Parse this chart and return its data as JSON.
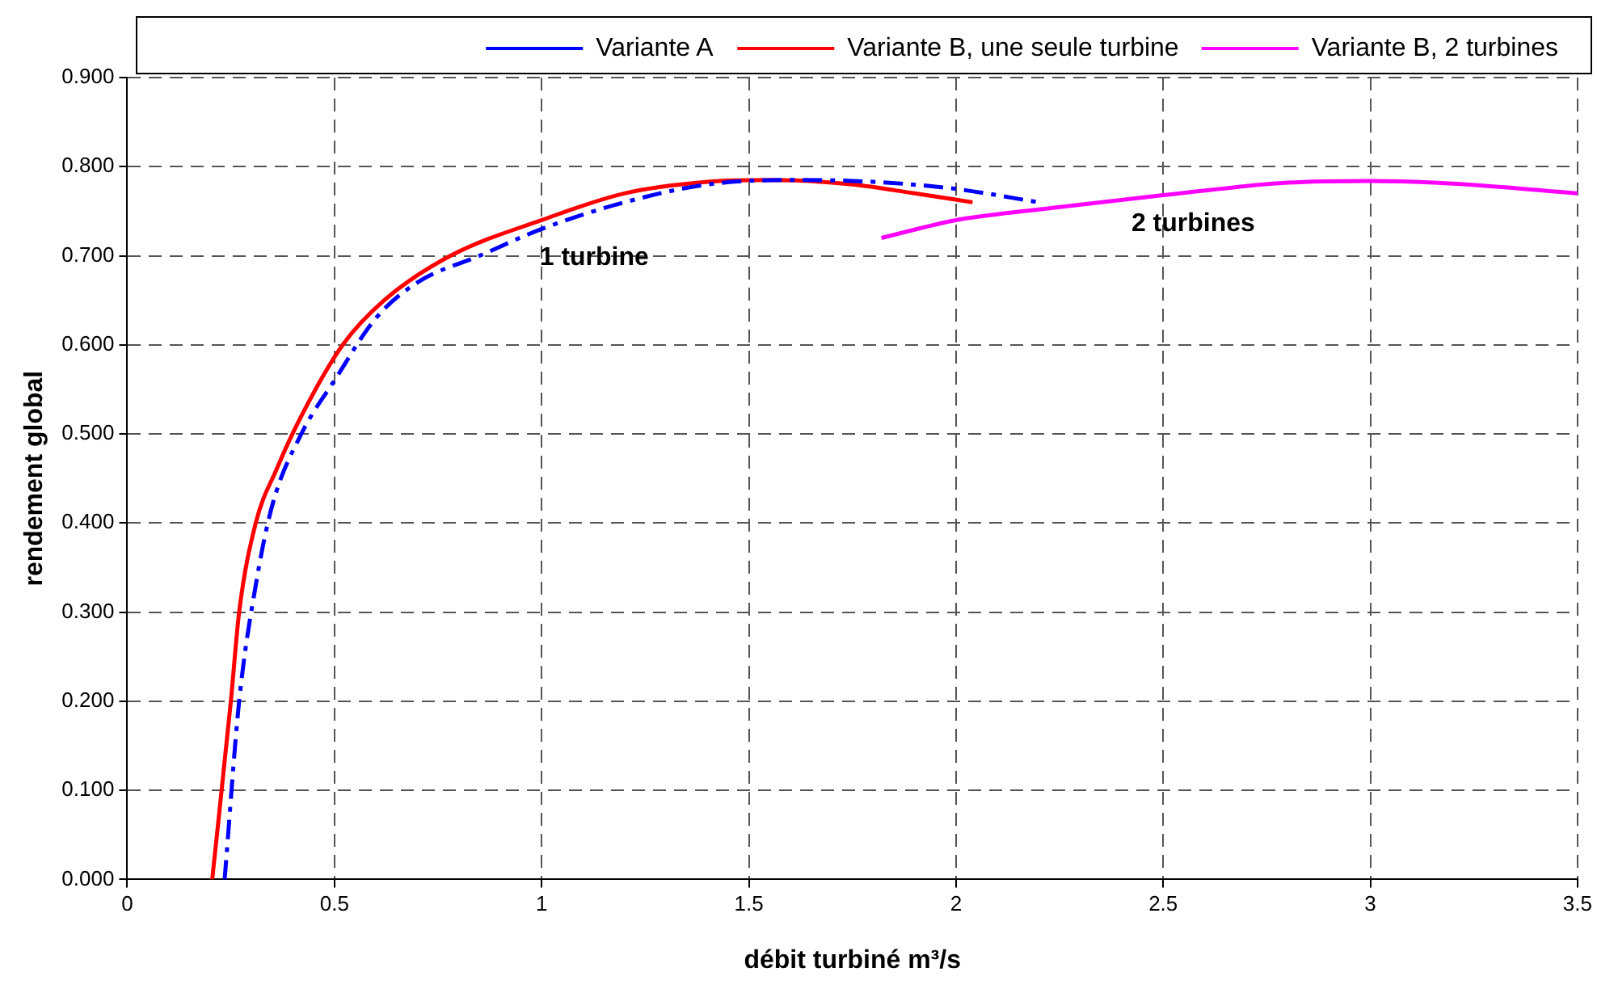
{
  "chart_data": {
    "type": "line",
    "xlabel": "débit turbiné m³/s",
    "ylabel": "rendement global",
    "xlim": [
      0,
      3.5
    ],
    "xticks": [
      0,
      0.5,
      1,
      1.5,
      2,
      2.5,
      3,
      3.5
    ],
    "ylim": [
      0,
      0.9
    ],
    "yticks": [
      {
        "value": 0,
        "label": "0.000"
      },
      {
        "value": 0.1,
        "label": "0.100"
      },
      {
        "value": 0.2,
        "label": "0.200"
      },
      {
        "value": 0.3,
        "label": "0.300"
      },
      {
        "value": 0.4,
        "label": "0.400"
      },
      {
        "value": 0.5,
        "label": "0.500"
      },
      {
        "value": 0.6,
        "label": "0.600"
      },
      {
        "value": 0.7,
        "label": "0.700"
      },
      {
        "value": 0.8,
        "label": "0.800"
      },
      {
        "value": 0.9,
        "label": "0.900"
      }
    ],
    "grid": true,
    "legend": "top",
    "marker": "none",
    "annotations": [
      "1 turbine",
      "2 turbines"
    ],
    "series": [
      {
        "name": "Variante A",
        "color": "#0000ff",
        "line_style": "dashed",
        "x": [
          0.235,
          0.27,
          0.31,
          0.35,
          0.42,
          0.5,
          0.6,
          0.7,
          0.85,
          1.0,
          1.2,
          1.4,
          1.6,
          1.8,
          2.0,
          2.2
        ],
        "values": [
          0,
          0.2,
          0.33,
          0.42,
          0.5,
          0.56,
          0.63,
          0.67,
          0.7,
          0.73,
          0.76,
          0.78,
          0.785,
          0.783,
          0.775,
          0.76
        ]
      },
      {
        "name": "Variante B, une seule turbine",
        "color": "#ff0000",
        "line_style": "solid",
        "x": [
          0.205,
          0.25,
          0.27,
          0.31,
          0.36,
          0.42,
          0.52,
          0.62,
          0.78,
          1.0,
          1.2,
          1.4,
          1.55,
          1.75,
          1.9,
          2.04
        ],
        "values": [
          0,
          0.2,
          0.3,
          0.4,
          0.46,
          0.52,
          0.6,
          0.65,
          0.7,
          0.74,
          0.77,
          0.783,
          0.785,
          0.78,
          0.77,
          0.76
        ]
      },
      {
        "name": "Variante B, 2 turbines",
        "color": "#ff00ff",
        "line_style": "solid",
        "x": [
          1.82,
          2.0,
          2.2,
          2.5,
          2.8,
          3.0,
          3.2,
          3.5
        ],
        "values": [
          0.72,
          0.74,
          0.752,
          0.768,
          0.782,
          0.784,
          0.781,
          0.77
        ]
      }
    ]
  }
}
